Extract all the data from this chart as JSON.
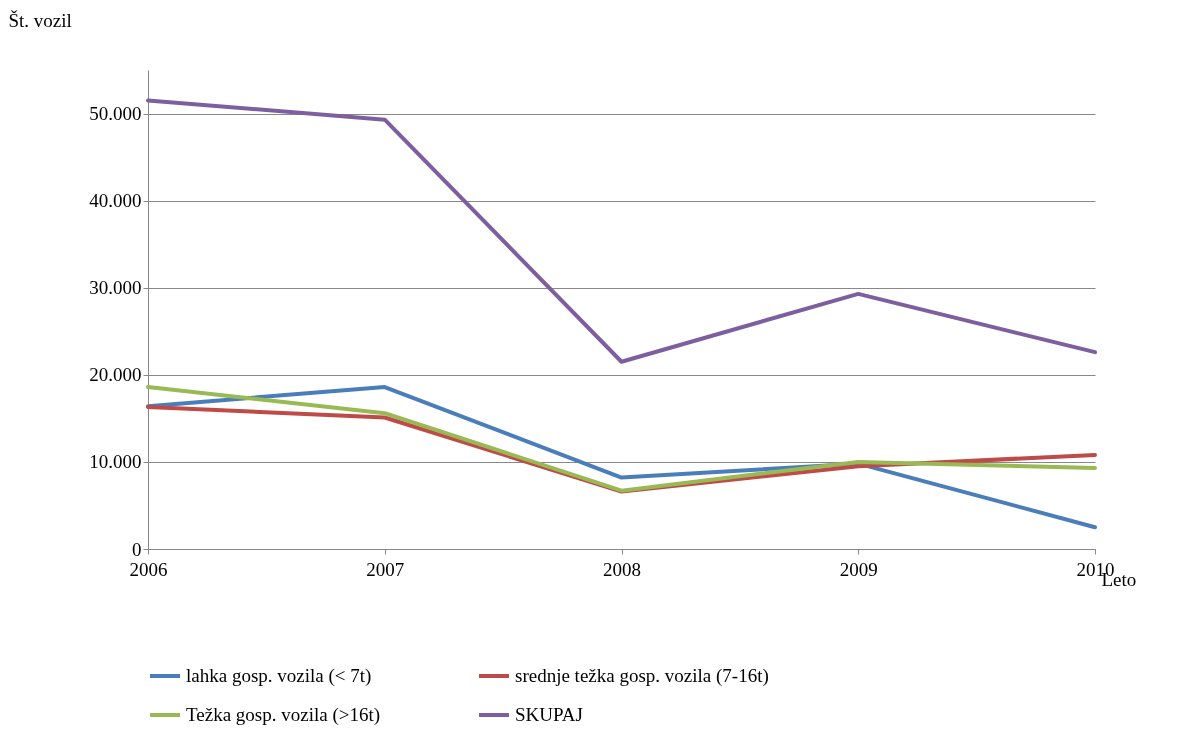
{
  "chart_data": {
    "type": "line",
    "xlabel": "Leto",
    "ylabel": "Št. vozil",
    "x": [
      2006,
      2007,
      2008,
      2009,
      2010
    ],
    "series": [
      {
        "name": "lahka gosp. vozila (< 7t)",
        "color": "#4a7ebb",
        "values": [
          16400,
          18600,
          8200,
          9800,
          2500
        ]
      },
      {
        "name": "srednje težka gosp. vozila (7-16t)",
        "color": "#be4b48",
        "values": [
          16300,
          15100,
          6600,
          9500,
          10800
        ]
      },
      {
        "name": "Težka gosp. vozila (>16t)",
        "color": "#98b954",
        "values": [
          18600,
          15600,
          6700,
          10000,
          9300
        ]
      },
      {
        "name": "SKUPAJ",
        "color": "#7d5fa0",
        "values": [
          51500,
          49300,
          21500,
          29300,
          22600
        ]
      }
    ],
    "xlim": [
      2006,
      2010
    ],
    "xticks": [
      2006,
      2007,
      2008,
      2009,
      2010
    ],
    "ylim": [
      0,
      55000
    ],
    "yticks": [
      {
        "value": 0,
        "label": "0"
      },
      {
        "value": 10000,
        "label": "10.000"
      },
      {
        "value": 20000,
        "label": "20.000"
      },
      {
        "value": 30000,
        "label": "30.000"
      },
      {
        "value": 40000,
        "label": "40.000"
      },
      {
        "value": 50000,
        "label": "50.000"
      }
    ],
    "grid": "y",
    "legend": "bottom",
    "marker": "none",
    "line_style": "solid"
  }
}
